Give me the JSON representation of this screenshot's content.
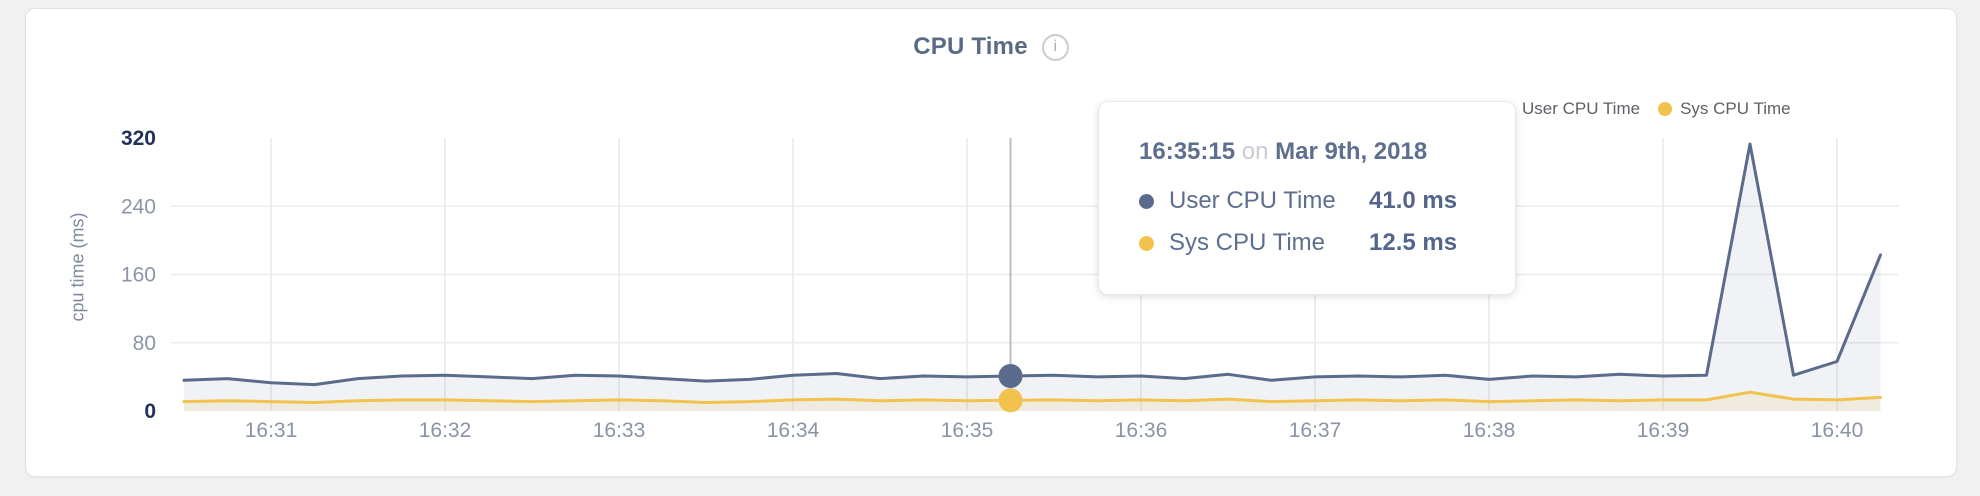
{
  "header": {
    "title": "CPU Time",
    "info_glyph": "i"
  },
  "legend": {
    "items": [
      {
        "label": "User CPU Time",
        "color": "#5a6b8c"
      },
      {
        "label": "Sys CPU Time",
        "color": "#f2c24e"
      }
    ]
  },
  "tooltip": {
    "time": "16:35:15",
    "connector": "on",
    "date": "Mar 9th, 2018",
    "rows": [
      {
        "label": "User CPU Time",
        "value": "41.0 ms",
        "color": "#5a6b8c"
      },
      {
        "label": "Sys CPU Time",
        "value": "12.5 ms",
        "color": "#f2c24e"
      }
    ]
  },
  "chart_data": {
    "type": "area",
    "title": "CPU Time",
    "xlabel": "",
    "ylabel": "cpu time (ms)",
    "ylim": [
      0,
      320
    ],
    "y_ticks": [
      0,
      80,
      160,
      240,
      320
    ],
    "y_ticks_emphasized": [
      0,
      320
    ],
    "y_gridlines": [
      80,
      160,
      240
    ],
    "grid": true,
    "legend_position": "top-right",
    "x_ticks": [
      "16:31",
      "16:32",
      "16:33",
      "16:34",
      "16:35",
      "16:36",
      "16:37",
      "16:38",
      "16:39",
      "16:40"
    ],
    "x": [
      "16:30:30",
      "16:30:45",
      "16:31:00",
      "16:31:15",
      "16:31:30",
      "16:31:45",
      "16:32:00",
      "16:32:15",
      "16:32:30",
      "16:32:45",
      "16:33:00",
      "16:33:15",
      "16:33:30",
      "16:33:45",
      "16:34:00",
      "16:34:15",
      "16:34:30",
      "16:34:45",
      "16:35:00",
      "16:35:15",
      "16:35:30",
      "16:35:45",
      "16:36:00",
      "16:36:15",
      "16:36:30",
      "16:36:45",
      "16:37:00",
      "16:37:15",
      "16:37:30",
      "16:37:45",
      "16:38:00",
      "16:38:15",
      "16:38:30",
      "16:38:45",
      "16:39:00",
      "16:39:15",
      "16:39:30",
      "16:39:45",
      "16:40:00",
      "16:40:15"
    ],
    "series": [
      {
        "name": "User CPU Time",
        "color": "#5a6b8c",
        "fill": "rgba(90,107,140,0.09)",
        "unit": "ms",
        "values": [
          36,
          38,
          33,
          31,
          38,
          41,
          42,
          40,
          38,
          42,
          41,
          38,
          35,
          37,
          42,
          44,
          38,
          41,
          40,
          41,
          42,
          40,
          41,
          38,
          43,
          36,
          40,
          41,
          40,
          42,
          37,
          41,
          40,
          43,
          41,
          42,
          313,
          42,
          58,
          183
        ]
      },
      {
        "name": "Sys CPU Time",
        "color": "#f2c24e",
        "fill": "rgba(242,194,78,0.13)",
        "unit": "ms",
        "values": [
          11,
          12,
          11,
          10,
          12,
          13,
          13,
          12,
          11,
          12,
          13,
          12,
          10,
          11,
          13,
          14,
          12,
          13,
          12,
          12.5,
          13,
          12,
          13,
          12,
          14,
          11,
          12,
          13,
          12,
          13,
          11,
          12,
          13,
          12,
          13,
          13,
          22,
          14,
          13,
          16
        ]
      }
    ],
    "hover": {
      "x": "16:35:15",
      "index": 19,
      "values_ms": [
        41.0,
        12.5
      ]
    }
  },
  "colors": {
    "page_bg": "#f1f1f2",
    "card_bg": "#ffffff",
    "grid_h": "#ebebed",
    "grid_v": "#e8e8ea",
    "hover_line": "#b9bcc1",
    "x_label": "#8a93a5",
    "y_label_muted": "#8b95a7",
    "y_label_emphasized": "#22325a"
  }
}
